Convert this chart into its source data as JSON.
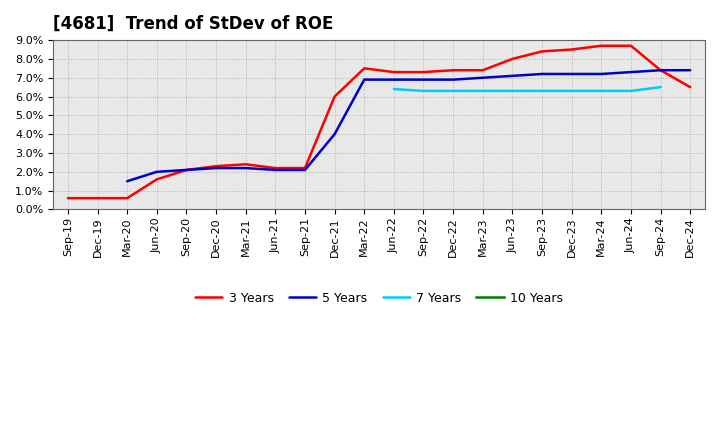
{
  "title": "[4681]  Trend of StDev of ROE",
  "x_labels": [
    "Sep-19",
    "Dec-19",
    "Mar-20",
    "Jun-20",
    "Sep-20",
    "Dec-20",
    "Mar-21",
    "Jun-21",
    "Sep-21",
    "Dec-21",
    "Mar-22",
    "Jun-22",
    "Sep-22",
    "Dec-22",
    "Mar-23",
    "Jun-23",
    "Sep-23",
    "Dec-23",
    "Mar-24",
    "Jun-24",
    "Sep-24",
    "Dec-24"
  ],
  "ylim": [
    0.0,
    0.09
  ],
  "yticks": [
    0.0,
    0.01,
    0.02,
    0.03,
    0.04,
    0.05,
    0.06,
    0.07,
    0.08,
    0.09
  ],
  "series": {
    "3 Years": {
      "color": "#ff0000",
      "linewidth": 1.8,
      "values": [
        0.006,
        0.006,
        0.006,
        0.016,
        0.021,
        0.023,
        0.024,
        0.022,
        0.022,
        0.06,
        0.075,
        0.073,
        0.073,
        0.074,
        0.074,
        0.08,
        0.084,
        0.085,
        0.087,
        0.087,
        0.074,
        0.065
      ]
    },
    "5 Years": {
      "color": "#0000cc",
      "linewidth": 1.8,
      "values": [
        null,
        null,
        0.015,
        0.02,
        0.021,
        0.022,
        0.022,
        0.021,
        0.021,
        0.04,
        0.069,
        0.069,
        0.069,
        0.069,
        0.07,
        0.071,
        0.072,
        0.072,
        0.072,
        0.073,
        0.074,
        0.074
      ]
    },
    "7 Years": {
      "color": "#00ccff",
      "linewidth": 1.8,
      "values": [
        null,
        null,
        null,
        null,
        null,
        null,
        null,
        null,
        null,
        null,
        null,
        0.064,
        0.063,
        0.063,
        0.063,
        0.063,
        0.063,
        0.063,
        0.063,
        0.063,
        0.065,
        null
      ]
    },
    "10 Years": {
      "color": "#008000",
      "linewidth": 1.8,
      "values": [
        null,
        null,
        null,
        null,
        null,
        null,
        null,
        null,
        null,
        null,
        null,
        null,
        null,
        null,
        null,
        null,
        null,
        null,
        null,
        null,
        null,
        null
      ]
    }
  },
  "bg_color": "#ffffff",
  "plot_bg_color": "#e8e8e8",
  "grid_color": "#999999",
  "title_fontsize": 12,
  "tick_fontsize": 8,
  "legend_fontsize": 9
}
